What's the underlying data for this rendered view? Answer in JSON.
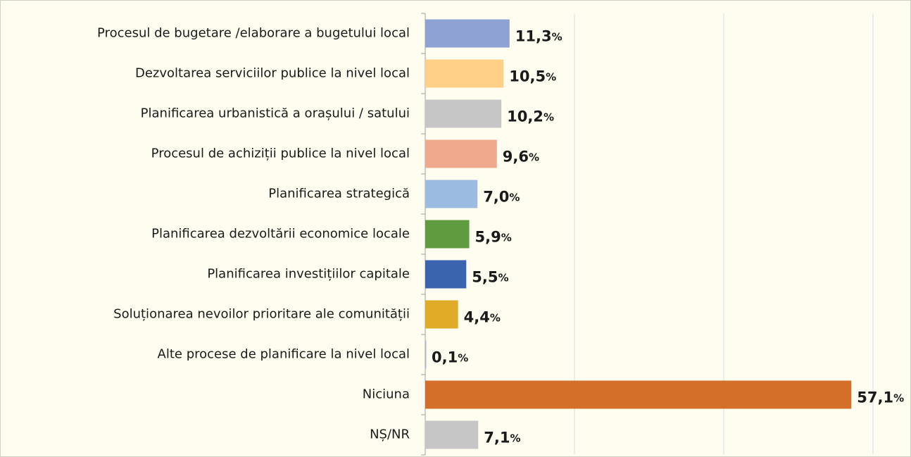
{
  "chart_data": {
    "type": "bar",
    "orientation": "horizontal",
    "categories": [
      "Procesul de bugetare /elaborare a bugetului local",
      "Dezvoltarea serviciilor publice la nivel local",
      "Planificarea urbanistică a orașului / satului",
      "Procesul de achiziții publice la nivel local",
      "Planificarea strategică",
      "Planificarea dezvoltării economice locale",
      "Planificarea investițiilor capitale",
      "Soluționarea nevoilor prioritare ale comunității",
      "Alte procese de planificare la nivel local",
      "Niciuna",
      "NȘ/NR"
    ],
    "values": [
      11.3,
      10.5,
      10.2,
      9.6,
      7.0,
      5.9,
      5.5,
      4.4,
      0.1,
      57.1,
      7.1
    ],
    "value_labels": [
      "11,3%",
      "10,5%",
      "10,2%",
      "9,6%",
      "7,0%",
      "5,9%",
      "5,5%",
      "4,4%",
      "0,1%",
      "57,1%",
      "7,1%"
    ],
    "colors": [
      "#8fa2d4",
      "#ffd088",
      "#c6c6c6",
      "#f0a98c",
      "#9bbbe0",
      "#5f9b3f",
      "#3a64ae",
      "#e0ab27",
      "#a9b9d8",
      "#d46f2a",
      "#c6c6c6"
    ],
    "xlim": [
      0,
      60
    ],
    "xticks": [
      0,
      20,
      40,
      60
    ],
    "grid": true
  }
}
